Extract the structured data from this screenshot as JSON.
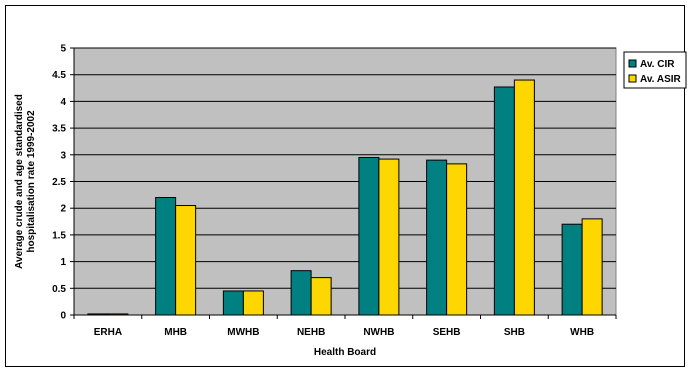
{
  "chart_data": {
    "type": "bar",
    "categories": [
      "ERHA",
      "MHB",
      "MWHB",
      "NEHB",
      "NWHB",
      "SEHB",
      "SHB",
      "WHB"
    ],
    "series": [
      {
        "name": "Av. CIR",
        "values": [
          0.02,
          2.2,
          0.45,
          0.83,
          2.95,
          2.9,
          4.27,
          1.7
        ]
      },
      {
        "name": "Av. ASIR",
        "values": [
          0.02,
          2.05,
          0.45,
          0.7,
          2.92,
          2.83,
          4.4,
          1.8
        ]
      }
    ],
    "xlabel": "Health Board",
    "ylabel_lines": [
      "Average crude and age standardised",
      "hospitalisation rate 1999-2002"
    ],
    "ylim": [
      0,
      5
    ],
    "yticks": [
      "0",
      "0.5",
      "1",
      "1.5",
      "2",
      "2.5",
      "3",
      "3.5",
      "4",
      "4.5",
      "5"
    ],
    "grid": true,
    "legend_position": "right",
    "colors": {
      "plot_background": "#c0c0c0",
      "series": [
        "#008080",
        "#ffd700"
      ],
      "gridline": "#000000"
    }
  }
}
